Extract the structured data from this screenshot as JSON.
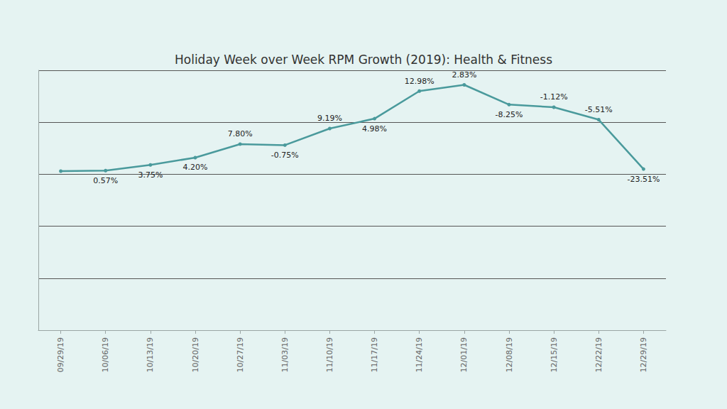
{
  "chart_data": {
    "type": "line",
    "title": "Holiday Week over Week RPM Growth (2019): Health & Fitness",
    "categories": [
      "09/29/19",
      "10/06/19",
      "10/13/19",
      "10/20/19",
      "10/27/19",
      "11/03/19",
      "11/10/19",
      "11/17/19",
      "11/24/19",
      "12/01/19",
      "12/08/19",
      "12/15/19",
      "12/22/19",
      "12/29/19"
    ],
    "values": [
      3.06,
      3.07,
      3.18,
      3.32,
      3.58,
      3.56,
      3.88,
      4.07,
      4.6,
      4.72,
      4.34,
      4.29,
      4.05,
      3.1
    ],
    "point_labels": [
      null,
      "0.57%",
      "3.75%",
      "4.20%",
      "7.80%",
      "-0.75%",
      "9.19%",
      "4.98%",
      "12.98%",
      "2.83%",
      "-8.25%",
      "-1.12%",
      "-5.51%",
      "-23.51%"
    ],
    "color": "#4a9a9c",
    "marker": "circle",
    "ylim": [
      0,
      5
    ],
    "yticks": [
      0,
      1,
      2,
      3,
      4
    ],
    "grid": true,
    "tick_labels": "x"
  }
}
